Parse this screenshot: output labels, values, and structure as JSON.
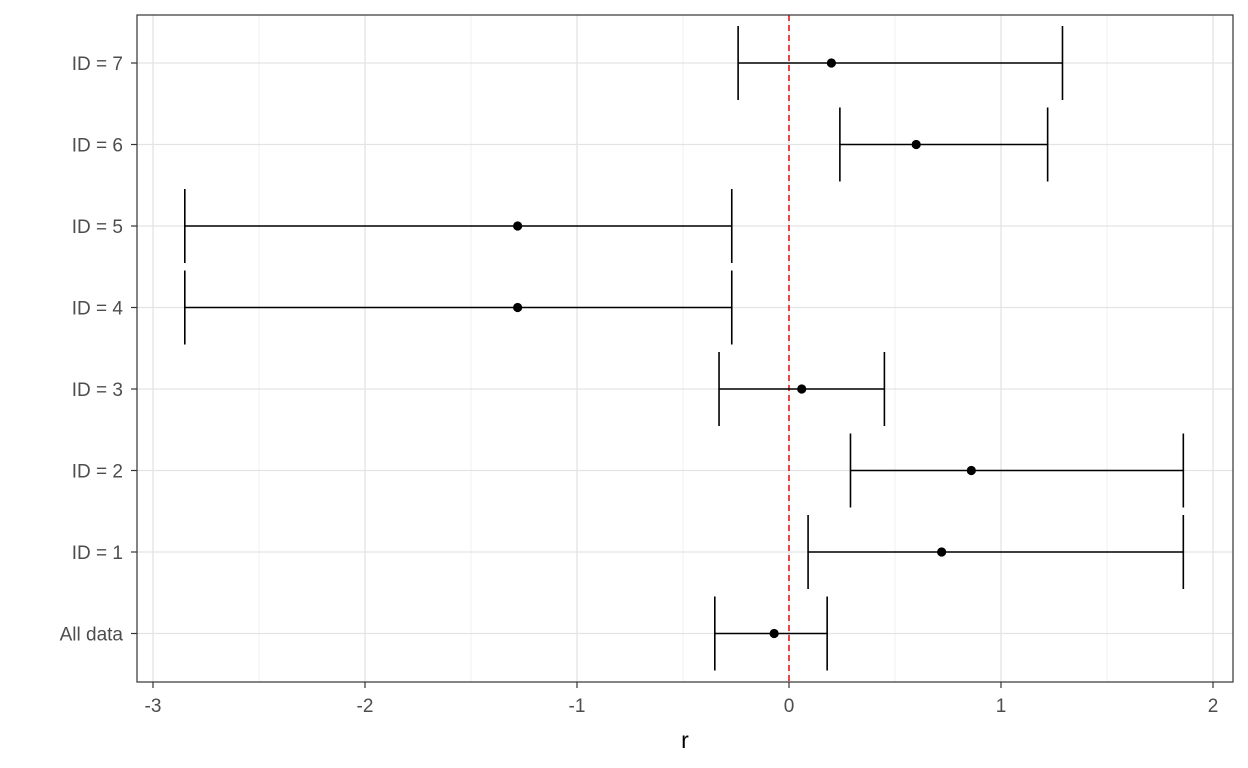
{
  "chart_data": {
    "type": "forest",
    "xlabel": "r",
    "ylabel": "",
    "xlim": [
      -3.06,
      2.1
    ],
    "x_ticks": [
      -3,
      -2,
      -1,
      0,
      1,
      2
    ],
    "x_tick_labels": [
      "-3",
      "-2",
      "-1",
      "0",
      "1",
      "2"
    ],
    "categories": [
      "All data",
      "ID = 1",
      "ID = 2",
      "ID = 3",
      "ID = 4",
      "ID = 5",
      "ID = 6",
      "ID = 7"
    ],
    "estimates": [
      -0.07,
      0.72,
      0.86,
      0.06,
      -1.28,
      -1.28,
      0.6,
      0.2
    ],
    "lower": [
      -0.35,
      0.09,
      0.29,
      -0.33,
      -2.85,
      -2.85,
      0.24,
      -0.24
    ],
    "upper": [
      0.18,
      1.86,
      1.86,
      0.45,
      -0.27,
      -0.27,
      1.22,
      1.29
    ],
    "reference_line": {
      "x": 0,
      "color": "#e41a1c",
      "style": "dashed"
    },
    "grid": true,
    "point_color": "#000000"
  }
}
